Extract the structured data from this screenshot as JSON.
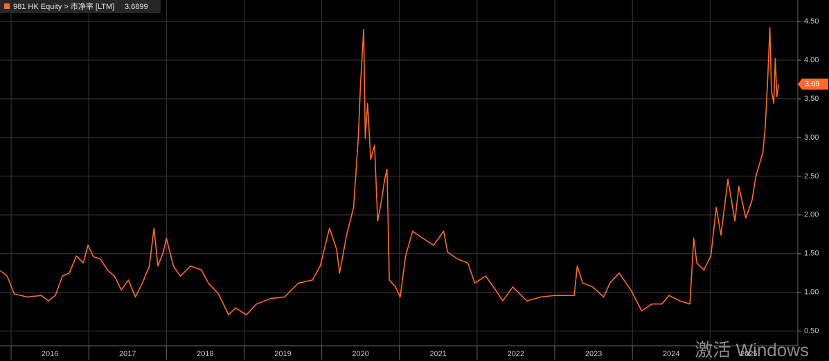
{
  "chart_data": {
    "type": "line",
    "x": [
      2015.86,
      2015.95,
      2016.04,
      2016.21,
      2016.39,
      2016.48,
      2016.57,
      2016.66,
      2016.75,
      2016.84,
      2016.93,
      2016.99,
      2017.06,
      2017.15,
      2017.24,
      2017.33,
      2017.42,
      2017.51,
      2017.6,
      2017.69,
      2017.78,
      2017.84,
      2017.89,
      2017.96,
      2018.0,
      2018.09,
      2018.18,
      2018.31,
      2018.45,
      2018.54,
      2018.67,
      2018.8,
      2018.89,
      2019.03,
      2019.16,
      2019.34,
      2019.52,
      2019.7,
      2019.88,
      2019.98,
      2020.1,
      2020.19,
      2020.23,
      2020.32,
      2020.41,
      2020.47,
      2020.5,
      2020.54,
      2020.56,
      2020.59,
      2020.63,
      2020.68,
      2020.72,
      2020.77,
      2020.81,
      2020.84,
      2020.87,
      2020.95,
      2021.01,
      2021.08,
      2021.17,
      2021.3,
      2021.44,
      2021.57,
      2021.62,
      2021.75,
      2021.88,
      2021.97,
      2022.11,
      2022.24,
      2022.33,
      2022.46,
      2022.64,
      2022.82,
      2023.0,
      2023.25,
      2023.29,
      2023.36,
      2023.49,
      2023.63,
      2023.71,
      2023.83,
      2023.98,
      2024.12,
      2024.25,
      2024.38,
      2024.47,
      2024.61,
      2024.74,
      2024.79,
      2024.83,
      2024.92,
      2025.01,
      2025.08,
      2025.14,
      2025.23,
      2025.32,
      2025.37,
      2025.46,
      2025.54,
      2025.59,
      2025.68,
      2025.71,
      2025.74,
      2025.77,
      2025.79,
      2025.82,
      2025.84,
      2025.86,
      2025.88
    ],
    "series": [
      {
        "name": "981 HK Equity > 市净率 [LTM]",
        "color": "#ff6a2b",
        "values": [
          1.28,
          1.21,
          0.98,
          0.94,
          0.96,
          0.89,
          0.96,
          1.21,
          1.25,
          1.47,
          1.38,
          1.61,
          1.46,
          1.43,
          1.29,
          1.21,
          1.03,
          1.16,
          0.94,
          1.12,
          1.34,
          1.83,
          1.34,
          1.52,
          1.7,
          1.34,
          1.21,
          1.34,
          1.29,
          1.12,
          0.98,
          0.71,
          0.8,
          0.71,
          0.85,
          0.92,
          0.94,
          1.12,
          1.16,
          1.34,
          1.83,
          1.56,
          1.25,
          1.74,
          2.1,
          2.99,
          3.71,
          4.4,
          2.99,
          3.44,
          2.72,
          2.9,
          1.92,
          2.19,
          2.46,
          2.59,
          1.16,
          1.07,
          0.94,
          1.47,
          1.79,
          1.7,
          1.61,
          1.79,
          1.52,
          1.43,
          1.38,
          1.12,
          1.21,
          1.03,
          0.89,
          1.07,
          0.89,
          0.94,
          0.96,
          0.96,
          1.34,
          1.12,
          1.07,
          0.94,
          1.12,
          1.25,
          1.03,
          0.76,
          0.85,
          0.85,
          0.96,
          0.89,
          0.85,
          1.7,
          1.38,
          1.29,
          1.47,
          2.1,
          1.74,
          2.46,
          1.92,
          2.37,
          1.96,
          2.19,
          2.5,
          2.81,
          3.13,
          3.71,
          4.42,
          3.62,
          3.44,
          4.02,
          3.53,
          3.69
        ],
        "last_value": 3.6899,
        "last_value_marker": 3.69
      }
    ],
    "xlim": [
      2015.857,
      2026.13
    ],
    "xticks": [
      {
        "value": 2016.5,
        "label": "2016"
      },
      {
        "value": 2017.5,
        "label": "2017"
      },
      {
        "value": 2018.5,
        "label": "2018"
      },
      {
        "value": 2019.5,
        "label": "2019"
      },
      {
        "value": 2020.5,
        "label": "2020"
      },
      {
        "value": 2021.5,
        "label": "2021"
      },
      {
        "value": 2022.5,
        "label": "2022"
      },
      {
        "value": 2023.5,
        "label": "2023"
      },
      {
        "value": 2024.5,
        "label": "2024"
      },
      {
        "value": 2025.5,
        "label": "2025"
      }
    ],
    "xgrid": [
      2016,
      2017,
      2018,
      2019,
      2020,
      2021,
      2022,
      2023,
      2024,
      2025
    ],
    "ylim": [
      0.31,
      4.777
    ],
    "yticks": [
      {
        "value": 0.5,
        "label": "0.50"
      },
      {
        "value": 1,
        "label": "1.00"
      },
      {
        "value": 1.5,
        "label": "1.50"
      },
      {
        "value": 2,
        "label": "2.00"
      },
      {
        "value": 2.5,
        "label": "2.50"
      },
      {
        "value": 3,
        "label": "3.00"
      },
      {
        "value": 3.5,
        "label": "3.50"
      },
      {
        "value": 4,
        "label": "4.00"
      },
      {
        "value": 4.5,
        "label": "4.50"
      }
    ],
    "grid": true
  },
  "overlay": {
    "watermark": "激活 Windows"
  }
}
